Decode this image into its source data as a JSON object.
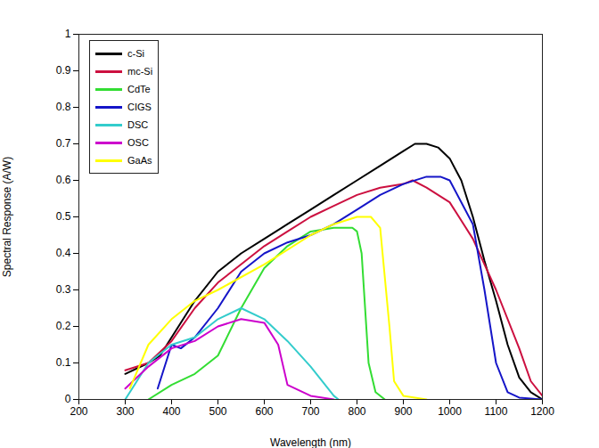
{
  "chart_data": {
    "type": "line",
    "x_label": "Wavelength (nm)",
    "y_label": "Spectral Response (A/W)",
    "xlim": [
      200,
      1200
    ],
    "xticks": [
      200,
      300,
      400,
      500,
      600,
      700,
      800,
      900,
      1000,
      1100,
      1200
    ],
    "ylim": [
      0,
      1
    ],
    "yticks": [
      0,
      0.1,
      0.2,
      0.3,
      0.4,
      0.5,
      0.6,
      0.7,
      0.8,
      0.9,
      1
    ],
    "grid": false,
    "legend": "top-left",
    "series": [
      {
        "name": "c-Si",
        "color": "#000000",
        "x": [
          300,
          350,
          375,
          400,
          450,
          500,
          550,
          600,
          650,
          700,
          750,
          800,
          850,
          900,
          925,
          950,
          975,
          1000,
          1025,
          1050,
          1075,
          1100,
          1125,
          1150,
          1175,
          1200
        ],
        "values": [
          0.07,
          0.1,
          0.12,
          0.17,
          0.27,
          0.35,
          0.4,
          0.44,
          0.48,
          0.52,
          0.56,
          0.6,
          0.64,
          0.68,
          0.7,
          0.7,
          0.69,
          0.66,
          0.6,
          0.5,
          0.38,
          0.27,
          0.15,
          0.06,
          0.02,
          0
        ]
      },
      {
        "name": "mc-Si",
        "color": "#cc1040",
        "x": [
          300,
          350,
          400,
          450,
          500,
          550,
          600,
          650,
          700,
          750,
          800,
          850,
          900,
          920,
          950,
          1000,
          1050,
          1100,
          1150,
          1175,
          1200
        ],
        "values": [
          0.08,
          0.1,
          0.16,
          0.25,
          0.32,
          0.37,
          0.42,
          0.46,
          0.5,
          0.53,
          0.56,
          0.58,
          0.59,
          0.6,
          0.58,
          0.54,
          0.44,
          0.3,
          0.14,
          0.05,
          0.01
        ]
      },
      {
        "name": "CdTe",
        "color": "#33dd33",
        "x": [
          350,
          400,
          450,
          500,
          550,
          600,
          650,
          700,
          750,
          790,
          800,
          810,
          825,
          840,
          860
        ],
        "values": [
          0,
          0.04,
          0.07,
          0.12,
          0.25,
          0.36,
          0.42,
          0.46,
          0.47,
          0.47,
          0.46,
          0.4,
          0.1,
          0.02,
          0
        ]
      },
      {
        "name": "CIGS",
        "color": "#1515c8",
        "x": [
          370,
          400,
          420,
          450,
          500,
          550,
          600,
          650,
          700,
          750,
          800,
          850,
          900,
          950,
          980,
          1000,
          1050,
          1075,
          1100,
          1125,
          1150,
          1200
        ],
        "values": [
          0.03,
          0.15,
          0.14,
          0.17,
          0.25,
          0.35,
          0.4,
          0.43,
          0.45,
          0.48,
          0.52,
          0.56,
          0.59,
          0.61,
          0.61,
          0.6,
          0.48,
          0.3,
          0.1,
          0.02,
          0.005,
          0
        ]
      },
      {
        "name": "DSC",
        "color": "#33cccc",
        "x": [
          300,
          350,
          400,
          450,
          500,
          550,
          600,
          650,
          700,
          750,
          760
        ],
        "values": [
          0,
          0.1,
          0.15,
          0.17,
          0.22,
          0.25,
          0.22,
          0.16,
          0.09,
          0.01,
          0
        ]
      },
      {
        "name": "OSC",
        "color": "#cc00cc",
        "x": [
          300,
          350,
          400,
          450,
          500,
          550,
          600,
          630,
          650,
          700,
          750
        ],
        "values": [
          0.03,
          0.09,
          0.14,
          0.16,
          0.2,
          0.22,
          0.21,
          0.15,
          0.04,
          0.01,
          0
        ]
      },
      {
        "name": "GaAs",
        "color": "#ffff00",
        "x": [
          310,
          350,
          400,
          450,
          500,
          600,
          700,
          750,
          800,
          830,
          850,
          870,
          880,
          900,
          950
        ],
        "values": [
          0.03,
          0.15,
          0.22,
          0.27,
          0.3,
          0.37,
          0.45,
          0.48,
          0.5,
          0.5,
          0.47,
          0.2,
          0.05,
          0.01,
          0
        ]
      }
    ]
  }
}
